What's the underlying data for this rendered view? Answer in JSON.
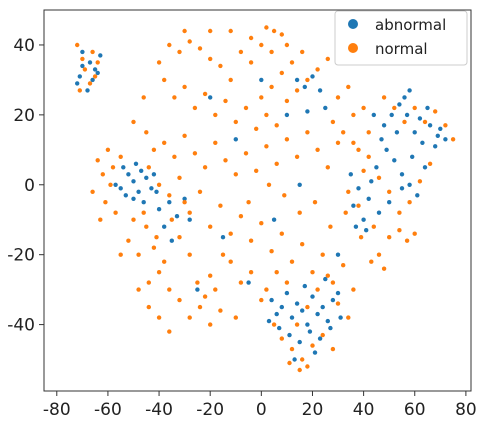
{
  "chart_data": {
    "type": "scatter",
    "title": "",
    "xlabel": "",
    "ylabel": "",
    "xlim": [
      -85,
      82
    ],
    "ylim": [
      -59,
      50
    ],
    "xticks": [
      -80,
      -60,
      -40,
      -20,
      0,
      20,
      40,
      60,
      80
    ],
    "yticks": [
      -40,
      -20,
      0,
      20,
      40
    ],
    "grid": false,
    "legend_position": "top-right",
    "series": [
      {
        "name": "abnormal",
        "color": "#1f77b4",
        "points": [
          [
            -70,
            38
          ],
          [
            -67,
            35
          ],
          [
            -65,
            33
          ],
          [
            -63,
            37
          ],
          [
            -71,
            31
          ],
          [
            -68,
            27
          ],
          [
            -66,
            30
          ],
          [
            -64,
            32
          ],
          [
            -70,
            34
          ],
          [
            -72,
            29
          ],
          [
            -52,
            3
          ],
          [
            -50,
            1
          ],
          [
            -55,
            -1
          ],
          [
            -48,
            -2
          ],
          [
            -47,
            4
          ],
          [
            -53,
            -3
          ],
          [
            -45,
            2
          ],
          [
            -57,
            0
          ],
          [
            -50,
            -4
          ],
          [
            -43,
            -1
          ],
          [
            -49,
            6
          ],
          [
            -54,
            5
          ],
          [
            -46,
            -5
          ],
          [
            -42,
            3
          ],
          [
            -40,
            -7
          ],
          [
            -36,
            -5
          ],
          [
            -33,
            -9
          ],
          [
            -38,
            -12
          ],
          [
            -30,
            -4
          ],
          [
            -35,
            -16
          ],
          [
            -41,
            -2
          ],
          [
            -28,
            -10
          ],
          [
            4,
            -33
          ],
          [
            6,
            -37
          ],
          [
            8,
            -35
          ],
          [
            10,
            -31
          ],
          [
            12,
            -38
          ],
          [
            14,
            -34
          ],
          [
            16,
            -36
          ],
          [
            18,
            -40
          ],
          [
            20,
            -32
          ],
          [
            22,
            -37
          ],
          [
            24,
            -35
          ],
          [
            26,
            -39
          ],
          [
            28,
            -33
          ],
          [
            30,
            -31
          ],
          [
            3,
            -39
          ],
          [
            7,
            -41
          ],
          [
            11,
            -43
          ],
          [
            15,
            -45
          ],
          [
            19,
            -42
          ],
          [
            23,
            -44
          ],
          [
            27,
            -41
          ],
          [
            31,
            -38
          ],
          [
            17,
            -29
          ],
          [
            25,
            -27
          ],
          [
            21,
            -48
          ],
          [
            13,
            -50
          ],
          [
            48,
            17
          ],
          [
            51,
            20
          ],
          [
            54,
            23
          ],
          [
            57,
            20
          ],
          [
            60,
            15
          ],
          [
            63,
            12
          ],
          [
            66,
            17
          ],
          [
            69,
            14
          ],
          [
            49,
            10
          ],
          [
            52,
            7
          ],
          [
            55,
            3
          ],
          [
            58,
            0
          ],
          [
            61,
            -3
          ],
          [
            47,
            13
          ],
          [
            53,
            15
          ],
          [
            59,
            8
          ],
          [
            64,
            5
          ],
          [
            68,
            11
          ],
          [
            56,
            25
          ],
          [
            50,
            -5
          ],
          [
            45,
            5
          ],
          [
            43,
            1
          ],
          [
            46,
            -8
          ],
          [
            55,
            -1
          ],
          [
            62,
            19
          ],
          [
            70,
            16
          ],
          [
            72,
            13
          ],
          [
            44,
            20
          ],
          [
            58,
            27
          ],
          [
            65,
            22
          ],
          [
            35,
            3
          ],
          [
            38,
            -1
          ],
          [
            36,
            -6
          ],
          [
            40,
            -10
          ],
          [
            42,
            -4
          ],
          [
            37,
            -12
          ],
          [
            41,
            -13
          ],
          [
            14,
            30
          ],
          [
            17,
            28
          ],
          [
            20,
            31
          ],
          [
            23,
            27
          ],
          [
            18,
            21
          ],
          [
            25,
            22
          ],
          [
            -20,
            25
          ],
          [
            -10,
            13
          ],
          [
            5,
            -10
          ],
          [
            15,
            0
          ],
          [
            -25,
            -30
          ],
          [
            0,
            30
          ],
          [
            30,
            -20
          ],
          [
            -15,
            -15
          ],
          [
            10,
            20
          ],
          [
            -5,
            -28
          ]
        ]
      },
      {
        "name": "normal",
        "color": "#ff7f0e",
        "points": [
          [
            -72,
            40
          ],
          [
            -70,
            36
          ],
          [
            -66,
            38
          ],
          [
            -69,
            33
          ],
          [
            -67,
            29
          ],
          [
            -64,
            35
          ],
          [
            -71,
            27
          ],
          [
            -65,
            31
          ],
          [
            -60,
            10
          ],
          [
            -55,
            8
          ],
          [
            -58,
            5
          ],
          [
            -62,
            3
          ],
          [
            -66,
            -2
          ],
          [
            -61,
            -5
          ],
          [
            -57,
            -8
          ],
          [
            -63,
            -10
          ],
          [
            -59,
            0
          ],
          [
            -64,
            7
          ],
          [
            -45,
            -12
          ],
          [
            -42,
            -18
          ],
          [
            -48,
            -20
          ],
          [
            -40,
            -25
          ],
          [
            -44,
            -28
          ],
          [
            -38,
            -22
          ],
          [
            -36,
            -30
          ],
          [
            -41,
            -15
          ],
          [
            -35,
            -10
          ],
          [
            -30,
            -5
          ],
          [
            -32,
            -15
          ],
          [
            -28,
            -20
          ],
          [
            -25,
            -28
          ],
          [
            -22,
            -32
          ],
          [
            -20,
            -26
          ],
          [
            -18,
            -30
          ],
          [
            -40,
            35
          ],
          [
            -36,
            40
          ],
          [
            -32,
            38
          ],
          [
            -28,
            41
          ],
          [
            -24,
            39
          ],
          [
            -20,
            36
          ],
          [
            -16,
            34
          ],
          [
            -12,
            30
          ],
          [
            -38,
            30
          ],
          [
            -34,
            25
          ],
          [
            -30,
            28
          ],
          [
            -26,
            22
          ],
          [
            -22,
            26
          ],
          [
            -18,
            20
          ],
          [
            -14,
            24
          ],
          [
            -10,
            18
          ],
          [
            -6,
            22
          ],
          [
            -2,
            16
          ],
          [
            -45,
            15
          ],
          [
            -42,
            10
          ],
          [
            -38,
            12
          ],
          [
            -34,
            8
          ],
          [
            -30,
            14
          ],
          [
            -26,
            9
          ],
          [
            -22,
            5
          ],
          [
            -18,
            12
          ],
          [
            -14,
            7
          ],
          [
            -10,
            3
          ],
          [
            -6,
            9
          ],
          [
            -2,
            4
          ],
          [
            2,
            11
          ],
          [
            6,
            6
          ],
          [
            10,
            13
          ],
          [
            14,
            8
          ],
          [
            18,
            15
          ],
          [
            22,
            10
          ],
          [
            26,
            5
          ],
          [
            30,
            12
          ],
          [
            -46,
            25
          ],
          [
            -50,
            18
          ],
          [
            -44,
            5
          ],
          [
            -40,
            0
          ],
          [
            -36,
            -3
          ],
          [
            -32,
            2
          ],
          [
            -28,
            -8
          ],
          [
            -24,
            -2
          ],
          [
            -20,
            -12
          ],
          [
            -16,
            -6
          ],
          [
            -12,
            -14
          ],
          [
            -8,
            -9
          ],
          [
            -4,
            -16
          ],
          [
            0,
            -11
          ],
          [
            4,
            -19
          ],
          [
            8,
            -14
          ],
          [
            12,
            -22
          ],
          [
            16,
            -17
          ],
          [
            20,
            -25
          ],
          [
            24,
            -20
          ],
          [
            28,
            -28
          ],
          [
            32,
            -23
          ],
          [
            36,
            -30
          ],
          [
            -12,
            -22
          ],
          [
            -8,
            -28
          ],
          [
            -4,
            -25
          ],
          [
            0,
            -33
          ],
          [
            -16,
            -36
          ],
          [
            -20,
            -40
          ],
          [
            -24,
            -35
          ],
          [
            -28,
            -38
          ],
          [
            -10,
            -38
          ],
          [
            0,
            25
          ],
          [
            4,
            28
          ],
          [
            8,
            32
          ],
          [
            12,
            35
          ],
          [
            16,
            38
          ],
          [
            2,
            20
          ],
          [
            6,
            17
          ],
          [
            10,
            24
          ],
          [
            14,
            27
          ],
          [
            18,
            30
          ],
          [
            22,
            33
          ],
          [
            26,
            36
          ],
          [
            30,
            25
          ],
          [
            34,
            28
          ],
          [
            28,
            18
          ],
          [
            32,
            15
          ],
          [
            36,
            20
          ],
          [
            40,
            22
          ],
          [
            38,
            10
          ],
          [
            42,
            15
          ],
          [
            5,
            -40
          ],
          [
            8,
            -44
          ],
          [
            12,
            -47
          ],
          [
            16,
            -50
          ],
          [
            20,
            -46
          ],
          [
            24,
            -43
          ],
          [
            28,
            -47
          ],
          [
            14,
            -40
          ],
          [
            18,
            -35
          ],
          [
            22,
            -30
          ],
          [
            26,
            -26
          ],
          [
            30,
            -34
          ],
          [
            34,
            -38
          ],
          [
            10,
            -28
          ],
          [
            2,
            -30
          ],
          [
            6,
            -25
          ],
          [
            15,
            -53
          ],
          [
            18,
            -52
          ],
          [
            11,
            -51
          ],
          [
            50,
            -15
          ],
          [
            54,
            -13
          ],
          [
            57,
            -16
          ],
          [
            46,
            -20
          ],
          [
            43,
            -22
          ],
          [
            48,
            -24
          ],
          [
            60,
            -14
          ],
          [
            48,
            25
          ],
          [
            52,
            22
          ],
          [
            56,
            18
          ],
          [
            60,
            22
          ],
          [
            64,
            18
          ],
          [
            68,
            21
          ],
          [
            72,
            17
          ],
          [
            75,
            13
          ],
          [
            66,
            6
          ],
          [
            62,
            1
          ],
          [
            58,
            -5
          ],
          [
            54,
            -8
          ],
          [
            50,
            -2
          ],
          [
            46,
            2
          ],
          [
            42,
            8
          ],
          [
            44,
            -12
          ],
          [
            38,
            -6
          ],
          [
            34,
            -2
          ],
          [
            40,
            4
          ],
          [
            36,
            12
          ],
          [
            2,
            45
          ],
          [
            5,
            44
          ],
          [
            8,
            43
          ],
          [
            0,
            40
          ],
          [
            -4,
            42
          ],
          [
            -50,
            -10
          ],
          [
            -52,
            -16
          ],
          [
            -46,
            -8
          ],
          [
            -55,
            -20
          ],
          [
            -48,
            -30
          ],
          [
            -44,
            -35
          ],
          [
            -40,
            -38
          ],
          [
            -36,
            -42
          ],
          [
            -32,
            -33
          ],
          [
            -15,
            -20
          ],
          [
            -5,
            -5
          ],
          [
            3,
            0
          ],
          [
            9,
            -3
          ],
          [
            15,
            -8
          ],
          [
            21,
            -5
          ],
          [
            27,
            -12
          ],
          [
            33,
            -8
          ],
          [
            39,
            -15
          ],
          [
            -8,
            38
          ],
          [
            -4,
            35
          ],
          [
            4,
            38
          ],
          [
            10,
            40
          ],
          [
            -12,
            44
          ],
          [
            -20,
            44
          ],
          [
            -30,
            44
          ]
        ]
      }
    ]
  }
}
